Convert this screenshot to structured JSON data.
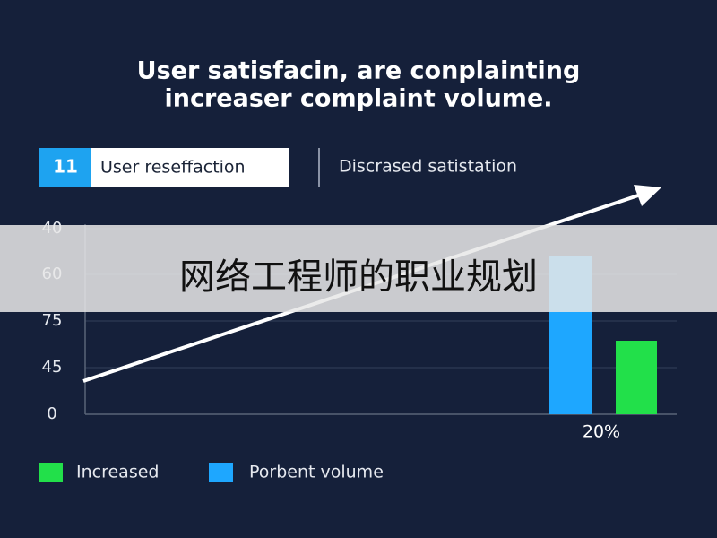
{
  "title": [
    "User satisfacin, are conplainting",
    "increaser complaint volume."
  ],
  "top_legend": {
    "badge": "11",
    "items": [
      "User reseffaction",
      "Discrased satistation"
    ]
  },
  "axis": {
    "tick_labels": [
      "40",
      "60",
      "75",
      "45",
      "0"
    ]
  },
  "bar_label": "20%",
  "bottom_legend": [
    "Increased",
    "Porbent volume"
  ],
  "banner": "网络工程师的职业规划"
}
